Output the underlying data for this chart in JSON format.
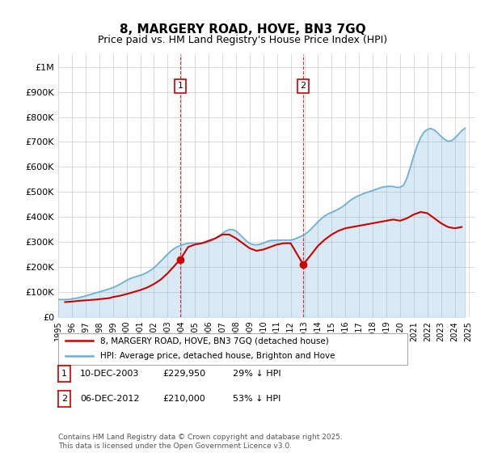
{
  "title": "8, MARGERY ROAD, HOVE, BN3 7GQ",
  "subtitle": "Price paid vs. HM Land Registry's House Price Index (HPI)",
  "ylabel_ticks": [
    "£0",
    "£100K",
    "£200K",
    "£300K",
    "£400K",
    "£500K",
    "£600K",
    "£700K",
    "£800K",
    "£900K",
    "£1M"
  ],
  "ytick_values": [
    0,
    100000,
    200000,
    300000,
    400000,
    500000,
    600000,
    700000,
    800000,
    900000,
    1000000
  ],
  "ylim": [
    0,
    1050000
  ],
  "xlim_start": 1995.0,
  "xlim_end": 2025.5,
  "xtick_years": [
    1995,
    1996,
    1997,
    1998,
    1999,
    2000,
    2001,
    2002,
    2003,
    2004,
    2005,
    2006,
    2007,
    2008,
    2009,
    2010,
    2011,
    2012,
    2013,
    2014,
    2015,
    2016,
    2017,
    2018,
    2019,
    2020,
    2021,
    2022,
    2023,
    2024,
    2025
  ],
  "hpi_color": "#6baed6",
  "price_color": "#cc0000",
  "vline1_x": 2003.92,
  "vline2_x": 2012.92,
  "marker1_x": 2003.92,
  "marker1_y": 229950,
  "marker2_x": 2012.92,
  "marker2_y": 210000,
  "label1_text": "1",
  "label2_text": "2",
  "legend_price_label": "8, MARGERY ROAD, HOVE, BN3 7GQ (detached house)",
  "legend_hpi_label": "HPI: Average price, detached house, Brighton and Hove",
  "annotation1": "1    10-DEC-2003         £229,950        29% ↓ HPI",
  "annotation2": "2    06-DEC-2012         £210,000        53% ↓ HPI",
  "footer": "Contains HM Land Registry data © Crown copyright and database right 2025.\nThis data is licensed under the Open Government Licence v3.0.",
  "background_color": "#ffffff",
  "plot_bg_color": "#ffffff",
  "grid_color": "#cccccc",
  "hpi_data_x": [
    1995.0,
    1995.25,
    1995.5,
    1995.75,
    1996.0,
    1996.25,
    1996.5,
    1996.75,
    1997.0,
    1997.25,
    1997.5,
    1997.75,
    1998.0,
    1998.25,
    1998.5,
    1998.75,
    1999.0,
    1999.25,
    1999.5,
    1999.75,
    2000.0,
    2000.25,
    2000.5,
    2000.75,
    2001.0,
    2001.25,
    2001.5,
    2001.75,
    2002.0,
    2002.25,
    2002.5,
    2002.75,
    2003.0,
    2003.25,
    2003.5,
    2003.75,
    2004.0,
    2004.25,
    2004.5,
    2004.75,
    2005.0,
    2005.25,
    2005.5,
    2005.75,
    2006.0,
    2006.25,
    2006.5,
    2006.75,
    2007.0,
    2007.25,
    2007.5,
    2007.75,
    2008.0,
    2008.25,
    2008.5,
    2008.75,
    2009.0,
    2009.25,
    2009.5,
    2009.75,
    2010.0,
    2010.25,
    2010.5,
    2010.75,
    2011.0,
    2011.25,
    2011.5,
    2011.75,
    2012.0,
    2012.25,
    2012.5,
    2012.75,
    2013.0,
    2013.25,
    2013.5,
    2013.75,
    2014.0,
    2014.25,
    2014.5,
    2014.75,
    2015.0,
    2015.25,
    2015.5,
    2015.75,
    2016.0,
    2016.25,
    2016.5,
    2016.75,
    2017.0,
    2017.25,
    2017.5,
    2017.75,
    2018.0,
    2018.25,
    2018.5,
    2018.75,
    2019.0,
    2019.25,
    2019.5,
    2019.75,
    2020.0,
    2020.25,
    2020.5,
    2020.75,
    2021.0,
    2021.25,
    2021.5,
    2021.75,
    2022.0,
    2022.25,
    2022.5,
    2022.75,
    2023.0,
    2023.25,
    2023.5,
    2023.75,
    2024.0,
    2024.25,
    2024.5,
    2024.75
  ],
  "hpi_data_y": [
    71000,
    70000,
    70000,
    71000,
    73000,
    75000,
    78000,
    81000,
    85000,
    89000,
    93000,
    97000,
    101000,
    105000,
    109000,
    113000,
    118000,
    124000,
    131000,
    139000,
    147000,
    154000,
    159000,
    163000,
    167000,
    172000,
    179000,
    187000,
    197000,
    210000,
    224000,
    238000,
    252000,
    265000,
    275000,
    282000,
    288000,
    292000,
    295000,
    296000,
    296000,
    296000,
    296000,
    297000,
    300000,
    307000,
    315000,
    324000,
    334000,
    344000,
    350000,
    350000,
    344000,
    332000,
    318000,
    305000,
    295000,
    290000,
    289000,
    291000,
    296000,
    302000,
    306000,
    307000,
    307000,
    308000,
    308000,
    308000,
    308000,
    311000,
    317000,
    323000,
    330000,
    340000,
    353000,
    367000,
    381000,
    394000,
    405000,
    413000,
    419000,
    425000,
    432000,
    440000,
    450000,
    462000,
    472000,
    480000,
    486000,
    492000,
    497000,
    502000,
    506000,
    511000,
    516000,
    520000,
    522000,
    523000,
    522000,
    519000,
    519000,
    527000,
    556000,
    600000,
    645000,
    686000,
    718000,
    740000,
    750000,
    754000,
    748000,
    736000,
    722000,
    710000,
    703000,
    705000,
    715000,
    730000,
    745000,
    755000
  ],
  "price_data_x": [
    1995.5,
    1996.0,
    1996.5,
    1997.0,
    1997.75,
    1998.25,
    1998.75,
    1999.0,
    1999.5,
    2000.0,
    2000.5,
    2001.0,
    2001.5,
    2002.0,
    2002.5,
    2003.0,
    2003.92,
    2004.5,
    2005.0,
    2005.5,
    2006.0,
    2006.5,
    2007.0,
    2007.5,
    2008.0,
    2008.5,
    2009.0,
    2009.5,
    2010.0,
    2010.5,
    2011.0,
    2011.5,
    2012.0,
    2012.92,
    2013.5,
    2014.0,
    2014.5,
    2015.0,
    2015.5,
    2016.0,
    2016.5,
    2017.0,
    2017.5,
    2018.0,
    2018.5,
    2019.0,
    2019.5,
    2020.0,
    2020.5,
    2021.0,
    2021.5,
    2022.0,
    2022.5,
    2023.0,
    2023.5,
    2024.0,
    2024.5
  ],
  "price_data_y": [
    60000,
    62000,
    65000,
    67000,
    70000,
    73000,
    76000,
    80000,
    85000,
    92000,
    100000,
    108000,
    118000,
    132000,
    150000,
    175000,
    229950,
    280000,
    290000,
    295000,
    305000,
    315000,
    330000,
    330000,
    315000,
    295000,
    275000,
    265000,
    270000,
    280000,
    290000,
    295000,
    295000,
    210000,
    250000,
    285000,
    310000,
    330000,
    345000,
    355000,
    360000,
    365000,
    370000,
    375000,
    380000,
    385000,
    390000,
    385000,
    395000,
    410000,
    420000,
    415000,
    395000,
    375000,
    360000,
    355000,
    360000
  ]
}
